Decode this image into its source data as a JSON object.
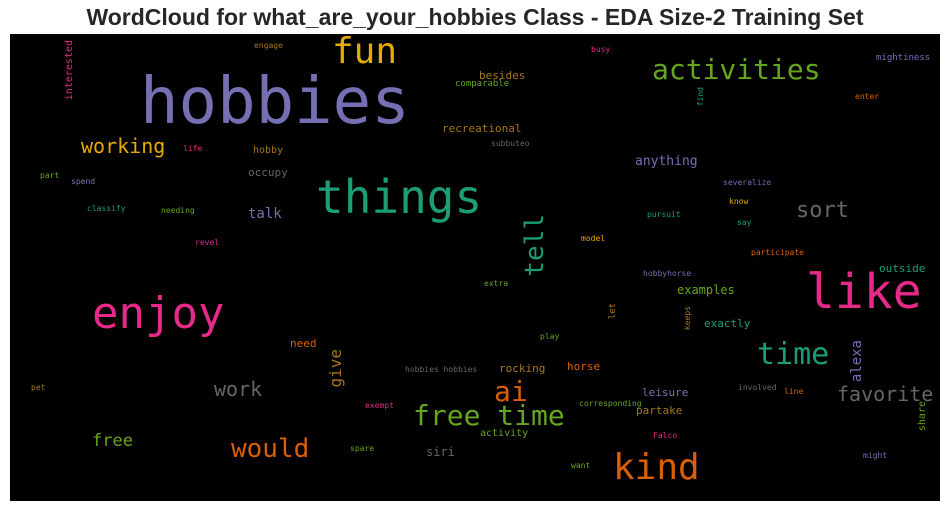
{
  "chart_data": {
    "type": "wordcloud",
    "title": "WordCloud for what_are_your_hobbies Class - EDA Size-2 Training Set",
    "background": "#000000",
    "words": [
      {
        "text": "hobbies",
        "color": "#7570b3"
      },
      {
        "text": "fun",
        "color": "#e6ab02"
      },
      {
        "text": "activities",
        "color": "#66a61e"
      },
      {
        "text": "things",
        "color": "#1b9e77"
      },
      {
        "text": "like",
        "color": "#e7298a"
      },
      {
        "text": "enjoy",
        "color": "#e7298a"
      },
      {
        "text": "kind",
        "color": "#d95f02"
      },
      {
        "text": "tell",
        "color": "#1b9e77"
      },
      {
        "text": "time",
        "color": "#1b9e77"
      },
      {
        "text": "free time",
        "color": "#66a61e"
      },
      {
        "text": "ai",
        "color": "#d95f02"
      },
      {
        "text": "would",
        "color": "#d95f02"
      },
      {
        "text": "sort",
        "color": "#666666"
      },
      {
        "text": "favorite",
        "color": "#666666"
      },
      {
        "text": "work",
        "color": "#666666"
      },
      {
        "text": "working",
        "color": "#e6ab02"
      },
      {
        "text": "free",
        "color": "#66a61e"
      },
      {
        "text": "give",
        "color": "#a6761d"
      },
      {
        "text": "alexa",
        "color": "#7570b3"
      },
      {
        "text": "talk",
        "color": "#7570b3"
      },
      {
        "text": "anything",
        "color": "#7570b3"
      },
      {
        "text": "recreational",
        "color": "#a6761d"
      },
      {
        "text": "examples",
        "color": "#66a61e"
      },
      {
        "text": "exactly",
        "color": "#1b9e77"
      },
      {
        "text": "outside",
        "color": "#1b9e77"
      },
      {
        "text": "rocking",
        "color": "#a6761d"
      },
      {
        "text": "horse",
        "color": "#d95f02"
      },
      {
        "text": "leisure",
        "color": "#7570b3"
      },
      {
        "text": "partake",
        "color": "#a6761d"
      },
      {
        "text": "siri",
        "color": "#666666"
      },
      {
        "text": "besides",
        "color": "#a6761d"
      },
      {
        "text": "occupy",
        "color": "#666666"
      },
      {
        "text": "hobby",
        "color": "#a6761d"
      },
      {
        "text": "interested",
        "color": "#e7298a"
      },
      {
        "text": "need",
        "color": "#d95f02"
      },
      {
        "text": "activity",
        "color": "#66a61e"
      },
      {
        "text": "share",
        "color": "#66a61e"
      },
      {
        "text": "mightiness",
        "color": "#7570b3"
      },
      {
        "text": "enter",
        "color": "#d95f02"
      },
      {
        "text": "comparable",
        "color": "#66a61e"
      },
      {
        "text": "busy",
        "color": "#e7298a"
      },
      {
        "text": "engage",
        "color": "#a6761d"
      },
      {
        "text": "find",
        "color": "#1b9e77"
      },
      {
        "text": "subbuteo",
        "color": "#666666"
      },
      {
        "text": "life",
        "color": "#e7298a"
      },
      {
        "text": "part",
        "color": "#66a61e"
      },
      {
        "text": "spend",
        "color": "#7570b3"
      },
      {
        "text": "classify",
        "color": "#1b9e77"
      },
      {
        "text": "needing",
        "color": "#66a61e"
      },
      {
        "text": "revel",
        "color": "#e7298a"
      },
      {
        "text": "severalize",
        "color": "#7570b3"
      },
      {
        "text": "know",
        "color": "#e6ab02"
      },
      {
        "text": "pursuit",
        "color": "#1b9e77"
      },
      {
        "text": "say",
        "color": "#1b9e77"
      },
      {
        "text": "model",
        "color": "#e6ab02"
      },
      {
        "text": "participate",
        "color": "#d95f02"
      },
      {
        "text": "hobbyhorse",
        "color": "#7570b3"
      },
      {
        "text": "extra",
        "color": "#66a61e"
      },
      {
        "text": "let",
        "color": "#a6761d"
      },
      {
        "text": "keeps",
        "color": "#a6761d"
      },
      {
        "text": "play",
        "color": "#66a61e"
      },
      {
        "text": "hobbies hobbies",
        "color": "#666666"
      },
      {
        "text": "involved",
        "color": "#666666"
      },
      {
        "text": "line",
        "color": "#d95f02"
      },
      {
        "text": "pet",
        "color": "#a6761d"
      },
      {
        "text": "exempt",
        "color": "#e7298a"
      },
      {
        "text": "corresponding",
        "color": "#66a61e"
      },
      {
        "text": "Falco",
        "color": "#e7298a"
      },
      {
        "text": "spare",
        "color": "#66a61e"
      },
      {
        "text": "want",
        "color": "#66a61e"
      },
      {
        "text": "might",
        "color": "#7570b3"
      }
    ]
  }
}
